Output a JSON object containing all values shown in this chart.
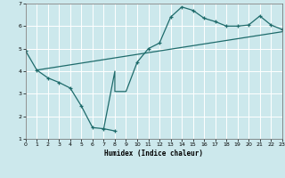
{
  "xlabel": "Humidex (Indice chaleur)",
  "xlim": [
    0,
    23
  ],
  "ylim": [
    1,
    7
  ],
  "xticks": [
    0,
    1,
    2,
    3,
    4,
    5,
    6,
    7,
    8,
    9,
    10,
    11,
    12,
    13,
    14,
    15,
    16,
    17,
    18,
    19,
    20,
    21,
    22,
    23
  ],
  "yticks": [
    1,
    2,
    3,
    4,
    5,
    6,
    7
  ],
  "background_color": "#cce8ec",
  "grid_color": "#ffffff",
  "line_color": "#1e6b6b",
  "line1_x": [
    0,
    1,
    2,
    3,
    4,
    5,
    6,
    7,
    8
  ],
  "line1_y": [
    4.9,
    4.05,
    3.7,
    3.5,
    3.25,
    2.45,
    1.5,
    1.45,
    1.35
  ],
  "line2_x": [
    7,
    8,
    8,
    9,
    10,
    11,
    12,
    13,
    14,
    14,
    15,
    16,
    17,
    18,
    19,
    20,
    21,
    22,
    23
  ],
  "line2_y": [
    1.45,
    4.0,
    3.1,
    3.1,
    4.4,
    5.0,
    5.25,
    6.4,
    6.85,
    6.85,
    6.7,
    6.35,
    6.2,
    6.0,
    6.0,
    6.05,
    6.45,
    6.05,
    5.85
  ],
  "line3_x": [
    1,
    23
  ],
  "line3_y": [
    4.05,
    5.75
  ],
  "marker_x1": [
    0,
    1,
    2,
    3,
    4,
    5,
    6,
    7,
    8
  ],
  "marker_y1": [
    4.9,
    4.05,
    3.7,
    3.5,
    3.25,
    2.45,
    1.5,
    1.45,
    1.35
  ],
  "marker_x2": [
    10,
    11,
    12,
    13,
    14,
    15,
    16,
    17,
    18,
    19,
    20,
    21,
    22,
    23
  ],
  "marker_y2": [
    4.4,
    5.0,
    5.25,
    6.4,
    6.85,
    6.7,
    6.35,
    6.2,
    6.0,
    6.0,
    6.05,
    6.45,
    6.05,
    5.85
  ]
}
